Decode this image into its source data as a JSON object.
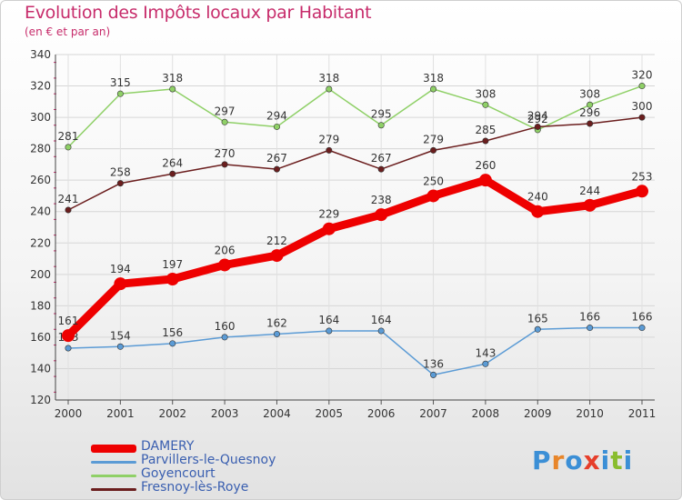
{
  "title": "Evolution des Impôts locaux par Habitant",
  "subtitle": "(en € et par an)",
  "logo": {
    "text": "Proxiti",
    "letters": [
      "P",
      "r",
      "o",
      "x",
      "i",
      "t",
      "i"
    ],
    "colors": [
      "#3b8fd6",
      "#e8862a",
      "#3b8fd6",
      "#e63e2a",
      "#3b8fd6",
      "#89bd2e",
      "#3b8fd6"
    ]
  },
  "chart_data": {
    "type": "line",
    "x": [
      "2000",
      "2001",
      "2002",
      "2003",
      "2004",
      "2005",
      "2006",
      "2007",
      "2008",
      "2009",
      "2010",
      "2011"
    ],
    "ylim": [
      120,
      340
    ],
    "yticks": [
      "120",
      "140",
      "160",
      "180",
      "200",
      "220",
      "240",
      "260",
      "280",
      "300",
      "320",
      "340"
    ],
    "grid": true,
    "legend_position": "bottom-left",
    "series": [
      {
        "name": "Goyencourt",
        "color": "#8fd067",
        "values": [
          281,
          315,
          318,
          297,
          294,
          318,
          295,
          318,
          308,
          292,
          308,
          320
        ],
        "labels": [
          "281",
          "315",
          "318",
          "297",
          "294",
          "318",
          "295",
          "318",
          "308",
          "292",
          "308",
          "320"
        ]
      },
      {
        "name": "Fresnoy-lès-Roye",
        "color": "#6b1e1e",
        "values": [
          241,
          258,
          264,
          270,
          267,
          279,
          267,
          279,
          285,
          294,
          296,
          300
        ],
        "labels": [
          "241",
          "258",
          "264",
          "270",
          "267",
          "279",
          "267",
          "279",
          "285",
          "294",
          "296",
          "300"
        ]
      },
      {
        "name": "Parvillers-le-Quesnoy",
        "color": "#5b9bd5",
        "values": [
          153,
          154,
          156,
          160,
          162,
          164,
          164,
          136,
          143,
          165,
          166,
          166
        ],
        "labels": [
          "153",
          "154",
          "156",
          "160",
          "162",
          "164",
          "164",
          "136",
          "143",
          "165",
          "166",
          "166"
        ]
      },
      {
        "name": "DAMERY",
        "color": "#ee0000",
        "values": [
          161,
          194,
          197,
          206,
          212,
          229,
          238,
          250,
          260,
          240,
          244,
          253
        ],
        "labels": [
          "161",
          "194",
          "197",
          "206",
          "212",
          "229",
          "238",
          "250",
          "260",
          "240",
          "244",
          "253"
        ]
      }
    ],
    "legend": [
      "DAMERY",
      "Parvillers-le-Quesnoy",
      "Goyencourt",
      "Fresnoy-lès-Roye"
    ]
  }
}
